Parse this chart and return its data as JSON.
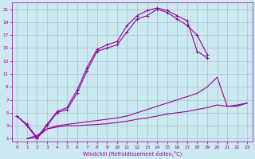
{
  "xlabel": "Windchill (Refroidissement éolien,°C)",
  "bg_color": "#cce8f0",
  "line_color": "#990099",
  "grid_color": "#99bbcc",
  "xlim": [
    -0.5,
    23.5
  ],
  "ylim": [
    0.5,
    22
  ],
  "xticks": [
    0,
    1,
    2,
    3,
    4,
    5,
    6,
    7,
    8,
    9,
    10,
    11,
    12,
    13,
    14,
    15,
    16,
    17,
    18,
    19,
    20,
    21,
    22,
    23
  ],
  "yticks": [
    1,
    3,
    5,
    7,
    9,
    11,
    13,
    15,
    17,
    19,
    21
  ],
  "c1x": [
    0,
    1,
    2,
    3,
    4,
    5,
    6,
    7,
    8,
    9,
    10,
    11,
    12,
    13,
    14,
    15,
    16,
    17,
    18,
    19
  ],
  "c1y": [
    4.5,
    3.0,
    1.0,
    3.0,
    5.0,
    5.5,
    8.0,
    11.5,
    14.5,
    15.0,
    15.5,
    17.5,
    19.5,
    20.0,
    21.0,
    20.5,
    19.5,
    18.5,
    17.0,
    14.0
  ],
  "c2x": [
    0,
    1,
    2,
    3,
    4,
    5,
    6,
    7,
    8,
    9,
    10,
    11,
    12,
    13,
    14,
    15,
    16,
    17,
    18,
    19
  ],
  "c2y": [
    4.5,
    3.2,
    1.2,
    3.2,
    5.2,
    5.8,
    8.5,
    12.0,
    14.8,
    15.5,
    16.0,
    18.5,
    20.0,
    20.8,
    21.2,
    20.8,
    20.0,
    19.2,
    14.5,
    13.5
  ],
  "c3x": [
    1,
    2,
    3,
    4,
    5,
    6,
    7,
    8,
    9,
    10,
    11,
    12,
    13,
    14,
    15,
    16,
    17,
    18,
    19,
    20,
    21,
    22,
    23
  ],
  "c3y": [
    1.0,
    1.5,
    2.5,
    3.0,
    3.2,
    3.4,
    3.6,
    3.8,
    4.0,
    4.2,
    4.5,
    5.0,
    5.5,
    6.0,
    6.5,
    7.0,
    7.5,
    8.0,
    9.0,
    10.5,
    6.0,
    6.0,
    6.5
  ],
  "c4x": [
    1,
    2,
    3,
    4,
    5,
    6,
    7,
    8,
    9,
    10,
    11,
    12,
    13,
    14,
    15,
    16,
    17,
    18,
    19,
    20,
    21,
    22,
    23
  ],
  "c4y": [
    1.0,
    1.2,
    2.5,
    2.8,
    3.0,
    3.0,
    3.1,
    3.2,
    3.3,
    3.5,
    3.7,
    4.0,
    4.2,
    4.5,
    4.8,
    5.0,
    5.2,
    5.5,
    5.8,
    6.2,
    6.0,
    6.2,
    6.5
  ]
}
